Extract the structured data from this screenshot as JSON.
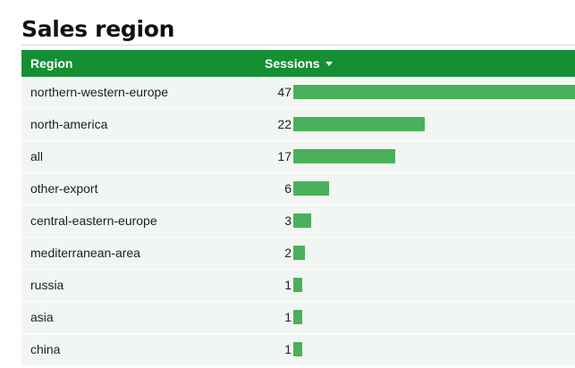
{
  "title": "Sales region",
  "chart_data": {
    "type": "table",
    "columns": [
      "Region",
      "Sessions"
    ],
    "sort": {
      "column": "Sessions",
      "direction": "descending"
    },
    "bar_color": "#4caf5b",
    "header_color": "#148f33",
    "rows": [
      {
        "region": "northern-western-europe",
        "sessions": 47
      },
      {
        "region": "north-america",
        "sessions": 22
      },
      {
        "region": "all",
        "sessions": 17
      },
      {
        "region": "other-export",
        "sessions": 6
      },
      {
        "region": "central-eastern-europe",
        "sessions": 3
      },
      {
        "region": "mediterranean-area",
        "sessions": 2
      },
      {
        "region": "russia",
        "sessions": 1
      },
      {
        "region": "asia",
        "sessions": 1
      },
      {
        "region": "china",
        "sessions": 1
      }
    ]
  }
}
